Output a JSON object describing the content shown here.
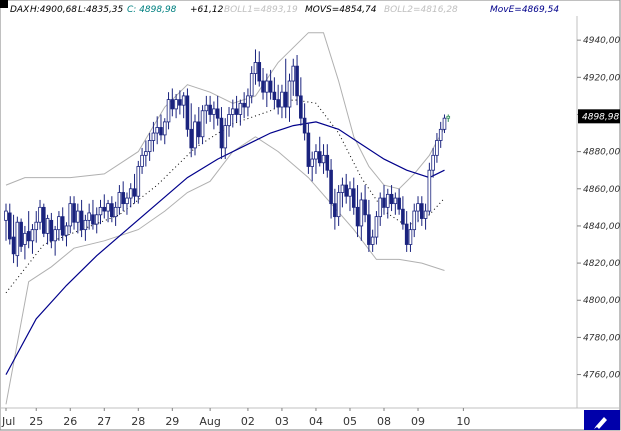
{
  "header": {
    "instrument": "DAX",
    "high": "H:4900,68",
    "low": "L:4835,35",
    "close": "C: 4898,98",
    "change": "+61,12",
    "boll1": "BOLL1=4893,19",
    "movs": "MOVS=4854,74",
    "boll2": "BOLL2=4816,28",
    "move": "MovE=4869,54"
  },
  "colors": {
    "candle": "#1a237e",
    "last_candle": "#2e8b57",
    "ema": "#00008b",
    "bands": "#b0b0b0",
    "sma": "#000000",
    "price_label_bg": "#000000",
    "price_label_text": "#ffffff",
    "close_text": "#008080",
    "change_text": "#000000",
    "faint_text": "#c0c0c0",
    "move_text": "#00008b",
    "corner_button_bg": "#0000aa"
  },
  "last_price_label": "4898,98",
  "corner_icon": "pen-cursor-icon",
  "chart_data": {
    "type": "candlestick",
    "instrument": "DAX",
    "y_ticks": [
      4760,
      4780,
      4800,
      4820,
      4840,
      4860,
      4880,
      4900,
      4920,
      4940
    ],
    "y_tick_labels": [
      "4760,00",
      "4780,00",
      "4800,00",
      "4820,00",
      "4840,00",
      "4860,00",
      "4880,00",
      "4900,00",
      "4920,00",
      "4940,00"
    ],
    "ylim": [
      4742,
      4953
    ],
    "x_labels": [
      "Jul",
      "25",
      "26",
      "27",
      "28",
      "29",
      "Aug",
      "02",
      "03",
      "04",
      "05",
      "08",
      "09",
      "10"
    ],
    "x_label_at_bar": [
      0,
      8,
      17,
      26,
      35,
      44,
      54,
      64,
      73,
      82,
      91,
      100,
      109,
      121
    ],
    "bar_count": 122,
    "grid": false,
    "legend_position": "top",
    "candles": [
      [
        4843,
        4852,
        4832,
        4848
      ],
      [
        4847,
        4852,
        4830,
        4833
      ],
      [
        4834,
        4846,
        4820,
        4825
      ],
      [
        4824,
        4845,
        4818,
        4842
      ],
      [
        4842,
        4844,
        4826,
        4829
      ],
      [
        4830,
        4840,
        4822,
        4836
      ],
      [
        4837,
        4848,
        4828,
        4832
      ],
      [
        4832,
        4841,
        4825,
        4838
      ],
      [
        4838,
        4848,
        4831,
        4842
      ],
      [
        4842,
        4854,
        4838,
        4850
      ],
      [
        4850,
        4852,
        4834,
        4836
      ],
      [
        4836,
        4846,
        4830,
        4844
      ],
      [
        4843,
        4847,
        4828,
        4832
      ],
      [
        4832,
        4840,
        4824,
        4838
      ],
      [
        4838,
        4848,
        4832,
        4845
      ],
      [
        4845,
        4850,
        4832,
        4835
      ],
      [
        4835,
        4842,
        4829,
        4840
      ],
      [
        4840,
        4856,
        4836,
        4852
      ],
      [
        4852,
        4856,
        4838,
        4842
      ],
      [
        4842,
        4852,
        4836,
        4848
      ],
      [
        4848,
        4854,
        4834,
        4838
      ],
      [
        4838,
        4846,
        4832,
        4843
      ],
      [
        4843,
        4852,
        4838,
        4847
      ],
      [
        4846,
        4854,
        4838,
        4841
      ],
      [
        4841,
        4850,
        4836,
        4846
      ],
      [
        4846,
        4854,
        4841,
        4850
      ],
      [
        4850,
        4857,
        4844,
        4848
      ],
      [
        4848,
        4854,
        4842,
        4852
      ],
      [
        4852,
        4856,
        4842,
        4845
      ],
      [
        4845,
        4853,
        4840,
        4850
      ],
      [
        4850,
        4862,
        4846,
        4858
      ],
      [
        4858,
        4864,
        4848,
        4852
      ],
      [
        4852,
        4858,
        4846,
        4855
      ],
      [
        4855,
        4863,
        4850,
        4860
      ],
      [
        4860,
        4868,
        4852,
        4856
      ],
      [
        4856,
        4875,
        4852,
        4872
      ],
      [
        4872,
        4882,
        4868,
        4878
      ],
      [
        4878,
        4886,
        4872,
        4880
      ],
      [
        4880,
        4890,
        4875,
        4886
      ],
      [
        4886,
        4896,
        4880,
        4890
      ],
      [
        4890,
        4899,
        4884,
        4893
      ],
      [
        4893,
        4900,
        4886,
        4889
      ],
      [
        4889,
        4898,
        4884,
        4896
      ],
      [
        4896,
        4912,
        4892,
        4908
      ],
      [
        4908,
        4914,
        4899,
        4903
      ],
      [
        4903,
        4911,
        4898,
        4908
      ],
      [
        4908,
        4913,
        4900,
        4905
      ],
      [
        4905,
        4912,
        4898,
        4910
      ],
      [
        4910,
        4914,
        4888,
        4892
      ],
      [
        4892,
        4906,
        4877,
        4882
      ],
      [
        4882,
        4900,
        4878,
        4896
      ],
      [
        4896,
        4904,
        4884,
        4888
      ],
      [
        4888,
        4905,
        4884,
        4902
      ],
      [
        4902,
        4910,
        4895,
        4905
      ],
      [
        4905,
        4910,
        4896,
        4900
      ],
      [
        4900,
        4907,
        4892,
        4903
      ],
      [
        4903,
        4910,
        4894,
        4898
      ],
      [
        4898,
        4904,
        4876,
        4882
      ],
      [
        4882,
        4898,
        4876,
        4894
      ],
      [
        4894,
        4904,
        4888,
        4900
      ],
      [
        4900,
        4908,
        4893,
        4903
      ],
      [
        4903,
        4910,
        4896,
        4900
      ],
      [
        4900,
        4908,
        4894,
        4906
      ],
      [
        4906,
        4912,
        4898,
        4904
      ],
      [
        4904,
        4914,
        4899,
        4910
      ],
      [
        4910,
        4926,
        4906,
        4922
      ],
      [
        4922,
        4935,
        4916,
        4928
      ],
      [
        4928,
        4934,
        4915,
        4918
      ],
      [
        4918,
        4925,
        4908,
        4912
      ],
      [
        4912,
        4922,
        4904,
        4918
      ],
      [
        4918,
        4924,
        4908,
        4912
      ],
      [
        4912,
        4920,
        4903,
        4908
      ],
      [
        4908,
        4916,
        4900,
        4904
      ],
      [
        4904,
        4916,
        4898,
        4912
      ],
      [
        4912,
        4930,
        4898,
        4904
      ],
      [
        4904,
        4922,
        4896,
        4918
      ],
      [
        4918,
        4930,
        4910,
        4926
      ],
      [
        4926,
        4932,
        4905,
        4910
      ],
      [
        4910,
        4920,
        4894,
        4898
      ],
      [
        4898,
        4906,
        4886,
        4890
      ],
      [
        4890,
        4895,
        4868,
        4872
      ],
      [
        4872,
        4880,
        4864,
        4876
      ],
      [
        4876,
        4884,
        4868,
        4880
      ],
      [
        4880,
        4888,
        4872,
        4874
      ],
      [
        4874,
        4884,
        4868,
        4878
      ],
      [
        4878,
        4884,
        4866,
        4870
      ],
      [
        4870,
        4876,
        4844,
        4852
      ],
      [
        4852,
        4860,
        4838,
        4845
      ],
      [
        4845,
        4862,
        4840,
        4858
      ],
      [
        4858,
        4866,
        4850,
        4862
      ],
      [
        4862,
        4868,
        4852,
        4856
      ],
      [
        4856,
        4864,
        4848,
        4860
      ],
      [
        4860,
        4866,
        4846,
        4850
      ],
      [
        4850,
        4862,
        4834,
        4840
      ],
      [
        4840,
        4858,
        4832,
        4854
      ],
      [
        4854,
        4862,
        4842,
        4846
      ],
      [
        4846,
        4854,
        4826,
        4830
      ],
      [
        4830,
        4838,
        4826,
        4834
      ],
      [
        4834,
        4848,
        4830,
        4845
      ],
      [
        4845,
        4858,
        4840,
        4855
      ],
      [
        4855,
        4862,
        4846,
        4850
      ],
      [
        4850,
        4860,
        4844,
        4857
      ],
      [
        4857,
        4862,
        4848,
        4852
      ],
      [
        4852,
        4858,
        4846,
        4855
      ],
      [
        4855,
        4860,
        4846,
        4849
      ],
      [
        4849,
        4856,
        4838,
        4841
      ],
      [
        4841,
        4848,
        4826,
        4830
      ],
      [
        4830,
        4842,
        4826,
        4838
      ],
      [
        4838,
        4852,
        4834,
        4848
      ],
      [
        4848,
        4856,
        4842,
        4852
      ],
      [
        4852,
        4856,
        4840,
        4844
      ],
      [
        4844,
        4852,
        4838,
        4848
      ],
      [
        4848,
        4874,
        4846,
        4870
      ],
      [
        4870,
        4882,
        4866,
        4878
      ],
      [
        4878,
        4890,
        4874,
        4886
      ],
      [
        4886,
        4896,
        4882,
        4892
      ],
      [
        4892,
        4900,
        4890,
        4898
      ],
      [
        4898,
        4900,
        4896,
        4899
      ]
    ],
    "series": [
      {
        "name": "BOLL1",
        "last": 4893.19,
        "style": "upper band",
        "x": [
          0,
          5,
          10,
          17,
          26,
          35,
          42,
          48,
          54,
          60,
          66,
          72,
          80,
          84,
          88,
          92,
          96,
          100,
          104,
          108,
          112,
          116
        ],
        "y": [
          4862,
          4866,
          4866,
          4866,
          4868,
          4880,
          4904,
          4916,
          4912,
          4906,
          4910,
          4928,
          4944,
          4944,
          4918,
          4888,
          4872,
          4862,
          4860,
          4868,
          4878,
          4893
        ]
      },
      {
        "name": "MOVS",
        "last": 4854.74,
        "style": "dotted moving average",
        "x": [
          0,
          10,
          20,
          30,
          40,
          50,
          60,
          70,
          76,
          82,
          88,
          94,
          100,
          106,
          112,
          116
        ],
        "y": [
          4804,
          4830,
          4838,
          4846,
          4862,
          4882,
          4895,
          4902,
          4908,
          4906,
          4890,
          4866,
          4848,
          4840,
          4846,
          4855
        ]
      },
      {
        "name": "BOLL2",
        "last": 4816.28,
        "style": "lower band",
        "x": [
          0,
          6,
          12,
          18,
          26,
          35,
          42,
          48,
          54,
          60,
          66,
          72,
          80,
          86,
          92,
          98,
          104,
          110,
          116
        ],
        "y": [
          4744,
          4810,
          4818,
          4828,
          4832,
          4838,
          4848,
          4858,
          4864,
          4880,
          4888,
          4880,
          4866,
          4852,
          4838,
          4822,
          4822,
          4820,
          4816
        ]
      },
      {
        "name": "MovE",
        "last": 4869.54,
        "style": "exponential moving average",
        "x": [
          0,
          8,
          16,
          24,
          32,
          40,
          48,
          56,
          64,
          70,
          76,
          82,
          88,
          94,
          100,
          106,
          112,
          116
        ],
        "y": [
          4760,
          4790,
          4808,
          4824,
          4838,
          4852,
          4866,
          4876,
          4884,
          4890,
          4894,
          4896,
          4892,
          4884,
          4876,
          4870,
          4866,
          4870
        ]
      }
    ]
  }
}
